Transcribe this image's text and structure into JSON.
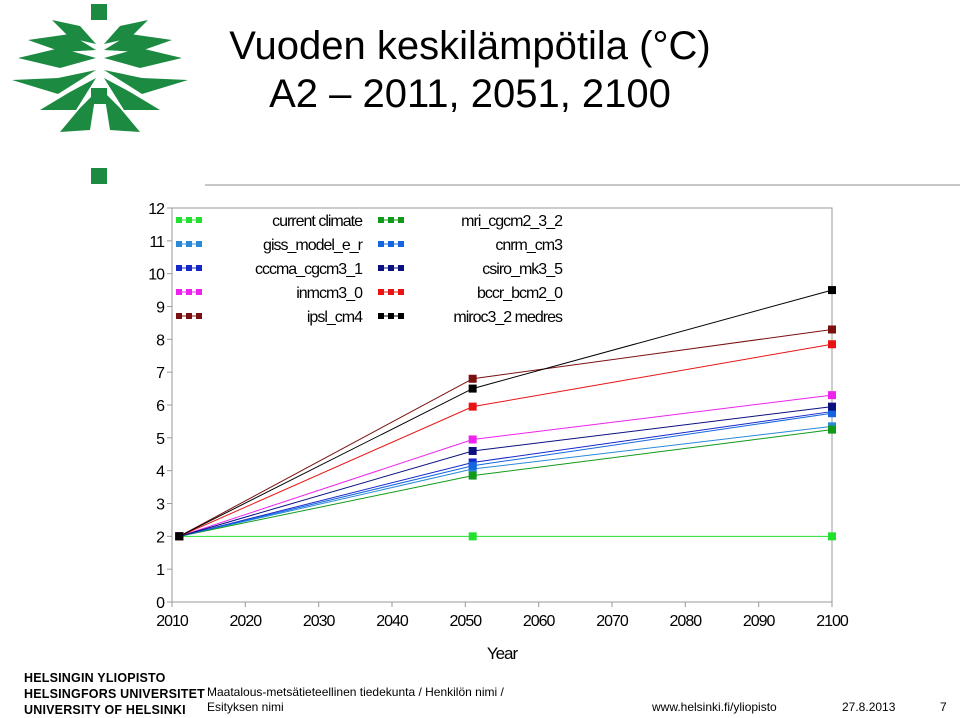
{
  "slide": {
    "title_line1": "Vuoden keskilämpötila (°C)",
    "title_line2": "A2 – 2011, 2051, 2100"
  },
  "footer": {
    "university": [
      "HELSINGIN YLIOPISTO",
      "HELSINGFORS UNIVERSITET",
      "UNIVERSITY OF HELSINKI"
    ],
    "faculty": "Maatalous-metsätieteellinen tiedekunta / Henkilön nimi / Esityksen nimi",
    "url": "www.helsinki.fi/yliopisto",
    "date": "27.8.2013",
    "page": "7"
  },
  "colors": {
    "logo": "#1c8a41",
    "rule": "#c8c8c8"
  },
  "chart_data": {
    "type": "line",
    "title": "",
    "xlabel": "Year",
    "ylabel": "",
    "xlim": [
      2010,
      2100
    ],
    "ylim": [
      0,
      12
    ],
    "xticks": [
      "2010",
      "2020",
      "2030",
      "2040",
      "2050",
      "2060",
      "2070",
      "2080",
      "2090",
      "2100"
    ],
    "yticks": [
      "0",
      "1",
      "2",
      "3",
      "4",
      "5",
      "6",
      "7",
      "8",
      "9",
      "10",
      "11",
      "12"
    ],
    "x": [
      2011,
      2051,
      2100
    ],
    "grid": false,
    "legend_position": "top-left",
    "series": [
      {
        "name": "current  climate",
        "color": "#22e02e",
        "values": [
          2.0,
          2.0,
          2.0
        ]
      },
      {
        "name": "giss_model_e_r",
        "color": "#2a8ad8",
        "values": [
          2.0,
          4.05,
          5.35
        ]
      },
      {
        "name": "cccma_cgcm3_1",
        "color": "#1428c8",
        "values": [
          2.0,
          4.25,
          5.8
        ]
      },
      {
        "name": "inmcm3_0",
        "color": "#ee22ee",
        "values": [
          2.0,
          4.95,
          6.3
        ]
      },
      {
        "name": "ipsl_cm4",
        "color": "#7a1010",
        "values": [
          2.0,
          6.8,
          8.3
        ]
      },
      {
        "name": "mri_cgcm2_3_2",
        "color": "#119a1a",
        "values": [
          2.0,
          3.85,
          5.25
        ]
      },
      {
        "name": "cnrm_cm3",
        "color": "#1466e0",
        "values": [
          2.0,
          4.15,
          5.75
        ]
      },
      {
        "name": "csiro_mk3_5",
        "color": "#0a1080",
        "values": [
          2.0,
          4.6,
          5.95
        ]
      },
      {
        "name": "bccr_bcm2_0",
        "color": "#e81414",
        "values": [
          2.0,
          5.95,
          7.85
        ]
      },
      {
        "name": "miroc3_2  medres",
        "color": "#000000",
        "values": [
          2.0,
          6.5,
          9.5
        ]
      }
    ]
  }
}
